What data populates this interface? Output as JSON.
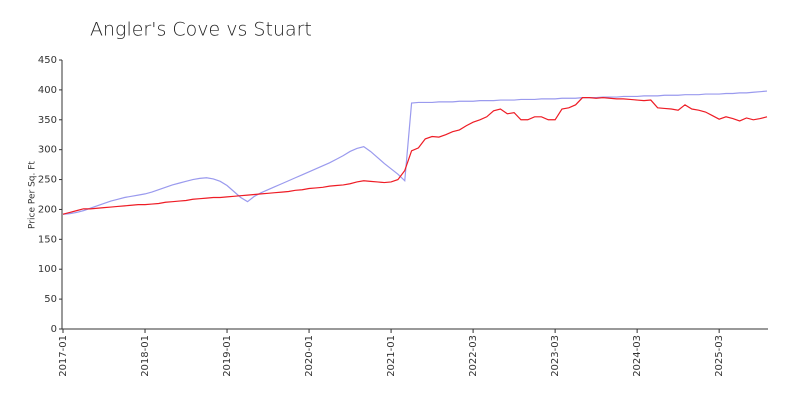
{
  "chart_data": {
    "type": "line",
    "title": "Angler's Cove vs Stuart",
    "y_label": "Price Per Sq. Ft",
    "categories": [
      "2017-01",
      null,
      null,
      null,
      null,
      null,
      null,
      null,
      null,
      null,
      null,
      null,
      "2018-01",
      null,
      null,
      null,
      null,
      null,
      null,
      null,
      null,
      null,
      null,
      null,
      "2019-01",
      null,
      null,
      null,
      null,
      null,
      null,
      null,
      null,
      null,
      null,
      null,
      "2020-01",
      null,
      null,
      null,
      null,
      null,
      null,
      null,
      null,
      null,
      null,
      null,
      "2021-01",
      null,
      null,
      null,
      null,
      null,
      null,
      null,
      null,
      null,
      null,
      null,
      "2022-03",
      null,
      null,
      null,
      null,
      null,
      null,
      null,
      null,
      null,
      null,
      null,
      "2023-03",
      null,
      null,
      null,
      null,
      null,
      null,
      null,
      null,
      null,
      null,
      null,
      "2024-03",
      null,
      null,
      null,
      null,
      null,
      null,
      null,
      null,
      null,
      null,
      null,
      "2025-03",
      null,
      null,
      null,
      null,
      null,
      null,
      null
    ],
    "series": [
      {
        "color": "#9a9aee",
        "values": [
          192,
          193,
          195,
          198,
          202,
          206,
          210,
          214,
          217,
          220,
          222,
          224,
          226,
          229,
          233,
          237,
          241,
          244,
          247,
          250,
          252,
          253,
          251,
          247,
          240,
          230,
          220,
          213,
          222,
          228,
          233,
          238,
          243,
          248,
          253,
          258,
          263,
          268,
          273,
          278,
          284,
          290,
          297,
          302,
          305,
          297,
          287,
          277,
          268,
          259,
          248,
          378,
          379,
          379,
          379,
          380,
          380,
          380,
          381,
          381,
          381,
          382,
          382,
          382,
          383,
          383,
          383,
          384,
          384,
          384,
          385,
          385,
          385,
          386,
          386,
          386,
          387,
          387,
          387,
          388,
          388,
          388,
          389,
          389,
          389,
          390,
          390,
          390,
          391,
          391,
          391,
          392,
          392,
          392,
          393,
          393,
          393,
          394,
          394,
          395,
          395,
          396,
          397,
          398
        ]
      },
      {
        "color": "#ee1c25",
        "values": [
          192,
          195,
          198,
          201,
          201,
          202,
          203,
          204,
          205,
          206,
          207,
          208,
          208,
          209,
          210,
          212,
          213,
          214,
          215,
          217,
          218,
          219,
          220,
          220,
          221,
          222,
          223,
          224,
          225,
          226,
          227,
          228,
          229,
          230,
          232,
          233,
          235,
          236,
          237,
          239,
          240,
          241,
          243,
          246,
          248,
          247,
          246,
          245,
          246,
          250,
          265,
          298,
          303,
          318,
          322,
          321,
          325,
          330,
          333,
          340,
          346,
          350,
          355,
          365,
          368,
          360,
          362,
          350,
          350,
          355,
          355,
          350,
          350,
          368,
          370,
          375,
          387,
          387,
          386,
          387,
          386,
          385,
          385,
          384,
          383,
          382,
          383,
          370,
          369,
          368,
          366,
          375,
          368,
          366,
          363,
          357,
          351,
          355,
          352,
          348,
          353,
          350,
          352,
          355
        ]
      }
    ],
    "ylim": [
      0,
      450
    ],
    "yticks": [
      0,
      50,
      100,
      150,
      200,
      250,
      300,
      350,
      400,
      450
    ]
  }
}
